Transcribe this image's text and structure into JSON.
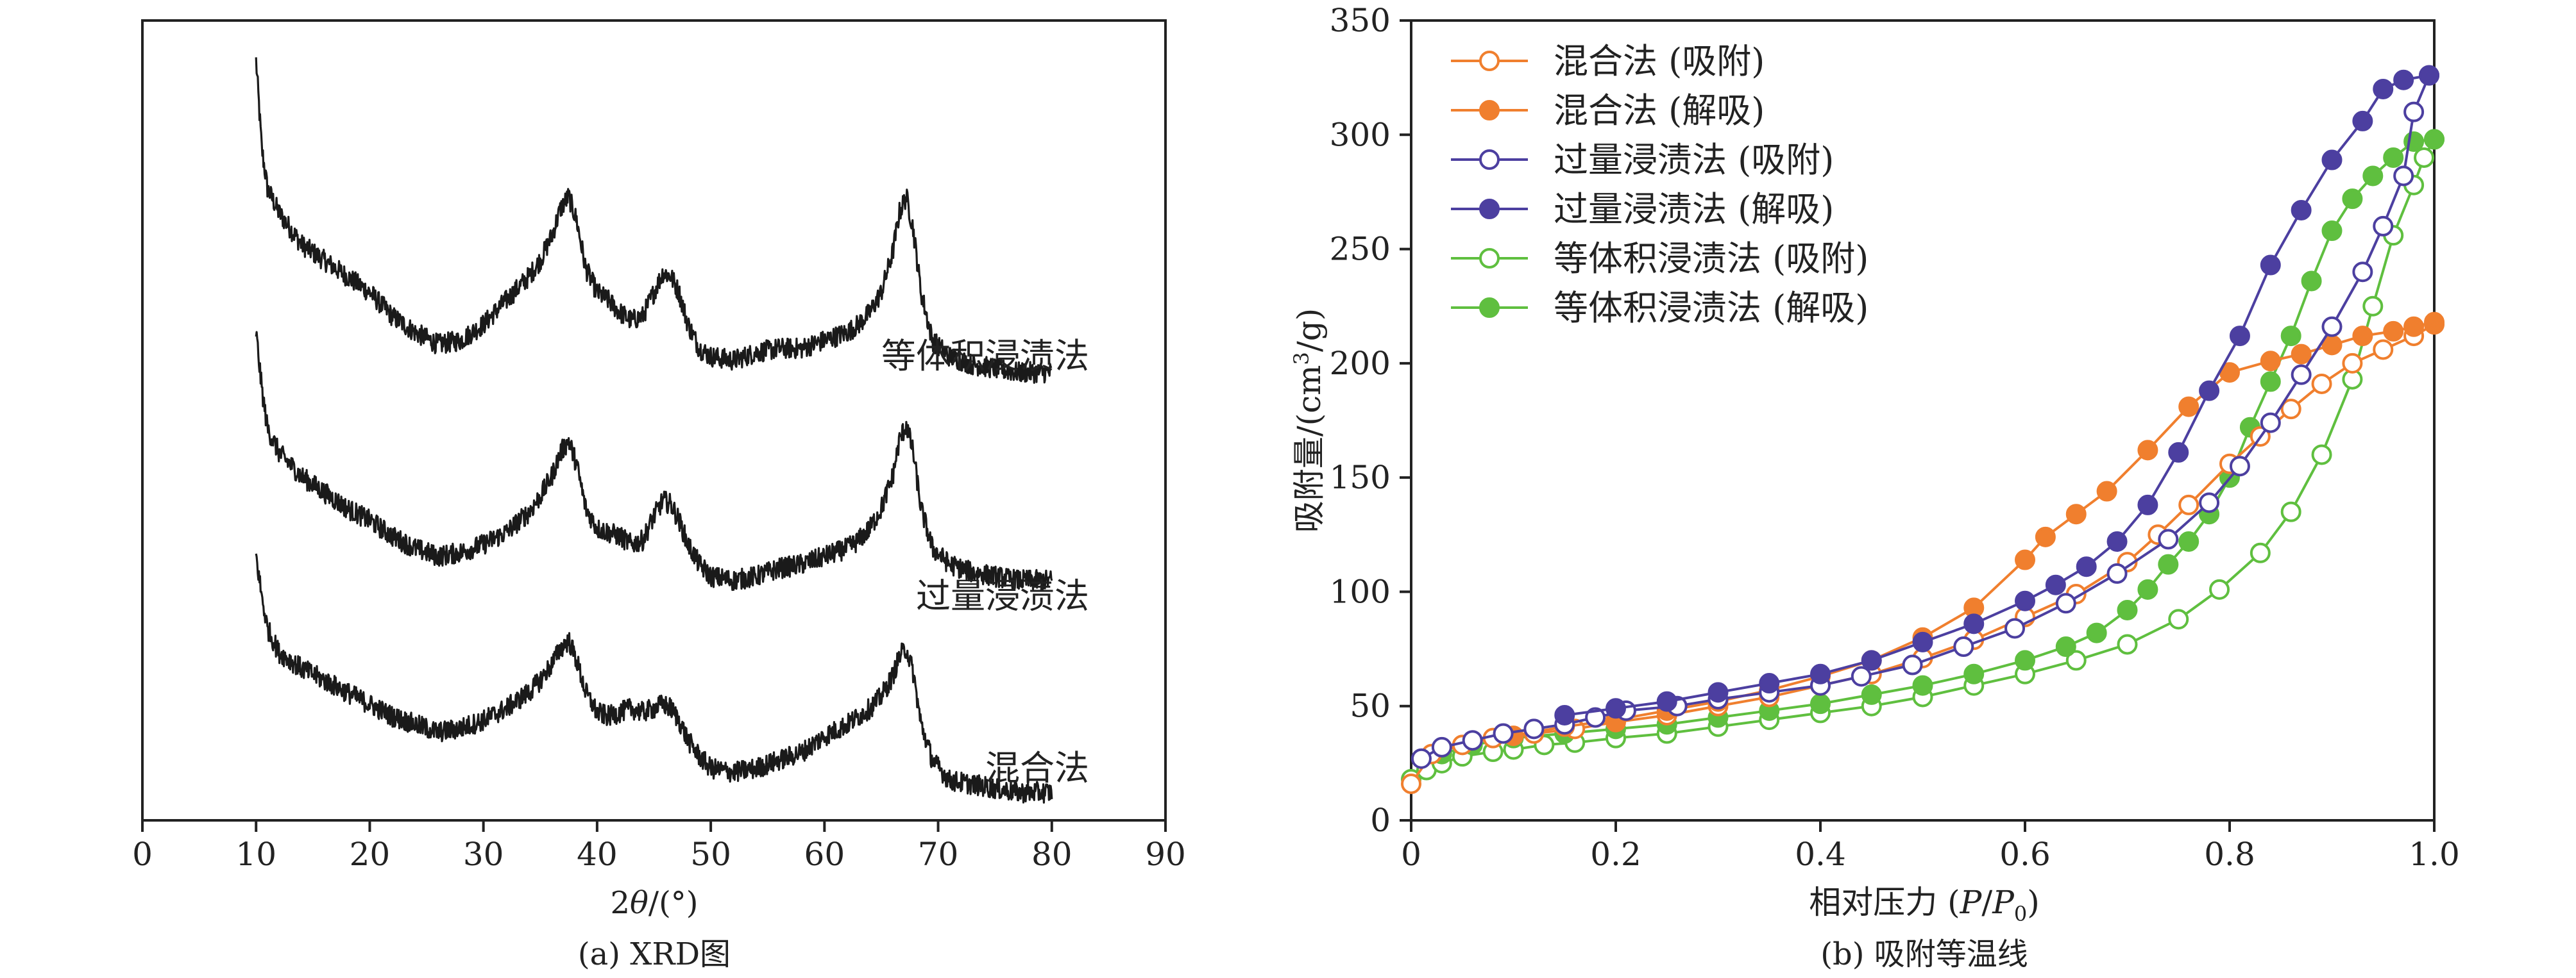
{
  "colors": {
    "xrd_line": "#1a1a1a",
    "mix": "#f07f2e",
    "excess": "#4c3fa0",
    "equal": "#5fbf3f",
    "axis": "#222222"
  },
  "chart_data": [
    {
      "type": "line",
      "title": "",
      "caption": "(a) XRD图",
      "xlabel_prefix": "2",
      "xlabel_theta": "θ",
      "xlabel_suffix": "/(°)",
      "ylabel": "",
      "xlim": [
        0,
        90
      ],
      "xticks": [
        0,
        10,
        20,
        30,
        40,
        50,
        60,
        70,
        80,
        90
      ],
      "y_ticks_shown": false,
      "series": [
        {
          "name": "等体积浸渍法",
          "label_position": "right",
          "x": [
            10,
            10.5,
            11,
            12,
            13,
            14,
            16,
            18,
            20,
            22,
            24,
            26,
            28,
            30,
            32,
            34,
            35,
            36,
            36.8,
            37.5,
            38.2,
            39,
            40,
            41,
            42,
            43,
            44,
            45,
            45.8,
            46.5,
            47.2,
            48,
            49,
            50,
            52,
            54,
            56,
            58,
            60,
            62,
            63,
            64,
            65,
            66,
            66.6,
            67.2,
            67.8,
            68.5,
            69.5,
            71,
            73,
            75,
            77,
            80
          ],
          "y": [
            95,
            84,
            79,
            76,
            74,
            72,
            70,
            68,
            66,
            63,
            61,
            59.5,
            60,
            62,
            65,
            68,
            70,
            73,
            76.5,
            78,
            75,
            69,
            66,
            65,
            63.5,
            62.5,
            63,
            66,
            68.5,
            68,
            66,
            62,
            59,
            58,
            57.5,
            58.5,
            59,
            59,
            60,
            61,
            62,
            63.5,
            66,
            71,
            76,
            78,
            74,
            66,
            60,
            58,
            57,
            56.5,
            56,
            56
          ]
        },
        {
          "name": "过量浸渍法",
          "label_position": "right",
          "x": [
            10,
            10.5,
            11,
            12,
            13,
            14,
            16,
            18,
            20,
            22,
            24,
            26,
            28,
            30,
            32,
            34,
            35,
            36,
            36.8,
            37.5,
            38.2,
            39,
            40,
            41,
            42,
            43,
            44,
            45,
            45.8,
            46.5,
            47.2,
            48,
            49,
            50,
            52,
            54,
            56,
            58,
            60,
            62,
            63,
            64,
            65,
            66,
            66.6,
            67.2,
            67.8,
            68.5,
            69.5,
            71,
            73,
            75,
            77,
            80
          ],
          "y": [
            61,
            54,
            49,
            46,
            44.5,
            43,
            41,
            39,
            37.5,
            35.5,
            34,
            33,
            33.5,
            34.5,
            36,
            38.5,
            40.5,
            43,
            46,
            47.5,
            44.5,
            39,
            36.5,
            36,
            35.5,
            34.5,
            35,
            38,
            40,
            39.5,
            37.5,
            34.5,
            32,
            30.5,
            30,
            30.5,
            31.5,
            32,
            33,
            34,
            35,
            36.5,
            39,
            43,
            47.5,
            49.5,
            46,
            39,
            34,
            32,
            31,
            30.5,
            30,
            30
          ]
        },
        {
          "name": "混合法",
          "label_position": "right",
          "x": [
            10,
            10.5,
            11,
            12,
            13,
            14,
            16,
            18,
            20,
            22,
            24,
            26,
            28,
            30,
            32,
            34,
            35,
            36,
            36.8,
            37.5,
            38.2,
            39,
            40,
            41,
            42,
            43,
            44,
            45,
            45.8,
            46.5,
            47.2,
            48,
            49,
            50,
            52,
            54,
            56,
            58,
            60,
            62,
            63,
            64,
            65,
            66,
            66.6,
            67.2,
            67.8,
            68.5,
            69.5,
            71,
            73,
            75,
            77,
            80
          ],
          "y": [
            33,
            28,
            24,
            21,
            20,
            19,
            17.5,
            16,
            14.5,
            13,
            12,
            11,
            11.5,
            12.5,
            14,
            16,
            17.5,
            19.5,
            21.5,
            22.5,
            20,
            16,
            13.5,
            13,
            13.5,
            14,
            13.5,
            14,
            14.5,
            14,
            12.5,
            10,
            8,
            6.5,
            6,
            6.5,
            7.5,
            8.5,
            10.5,
            12,
            13,
            14,
            15.5,
            18,
            20.5,
            21.5,
            18.5,
            12,
            7.5,
            5,
            4.5,
            4,
            3.5,
            3.5
          ]
        }
      ]
    },
    {
      "type": "line",
      "title": "",
      "caption": "(b) 吸附等温线",
      "xlabel_prefix": "相对压力 (",
      "xlabel_p": "P",
      "xlabel_slash": "/",
      "xlabel_p0": "P",
      "xlabel_sub": "0",
      "xlabel_close": ")",
      "ylabel_prefix": "吸附量/(cm",
      "ylabel_sup": "3",
      "ylabel_suffix": "/g)",
      "xlim": [
        0,
        1.0
      ],
      "ylim": [
        0,
        350
      ],
      "xticks": [
        0,
        0.2,
        0.4,
        0.6,
        0.8,
        1.0
      ],
      "xtick_labels": [
        "0",
        "0.2",
        "0.4",
        "0.6",
        "0.8",
        "1.0"
      ],
      "yticks": [
        0,
        50,
        100,
        150,
        200,
        250,
        300,
        350
      ],
      "legend_position": "top-left",
      "series": [
        {
          "name": "混合法 (吸附)",
          "color_key": "mix",
          "marker": "open",
          "x": [
            0.0,
            0.02,
            0.05,
            0.08,
            0.12,
            0.16,
            0.2,
            0.25,
            0.3,
            0.35,
            0.4,
            0.45,
            0.5,
            0.55,
            0.6,
            0.65,
            0.7,
            0.73,
            0.76,
            0.8,
            0.83,
            0.86,
            0.89,
            0.92,
            0.95,
            0.98,
            1.0
          ],
          "y": [
            16,
            29,
            33,
            36,
            38,
            40,
            43,
            46,
            50,
            54,
            59,
            64,
            71,
            79,
            89,
            99,
            113,
            125,
            138,
            156,
            168,
            180,
            191,
            200,
            206,
            212,
            217
          ]
        },
        {
          "name": "混合法 (解吸)",
          "color_key": "mix",
          "marker": "filled",
          "x": [
            1.0,
            0.98,
            0.96,
            0.93,
            0.9,
            0.87,
            0.84,
            0.8,
            0.76,
            0.72,
            0.68,
            0.65,
            0.62,
            0.6,
            0.55,
            0.5,
            0.45,
            0.4,
            0.35,
            0.3,
            0.25,
            0.2,
            0.15,
            0.1
          ],
          "y": [
            218,
            216,
            214,
            212,
            208,
            204,
            201,
            196,
            181,
            162,
            144,
            134,
            124,
            114,
            93,
            80,
            70,
            63,
            57,
            52,
            48,
            44,
            41,
            37
          ]
        },
        {
          "name": "过量浸渍法 (吸附)",
          "color_key": "excess",
          "marker": "open",
          "x": [
            0.01,
            0.03,
            0.06,
            0.09,
            0.12,
            0.15,
            0.18,
            0.21,
            0.26,
            0.3,
            0.35,
            0.4,
            0.44,
            0.49,
            0.54,
            0.59,
            0.64,
            0.69,
            0.74,
            0.78,
            0.81,
            0.84,
            0.87,
            0.9,
            0.93,
            0.95,
            0.97,
            0.98,
            0.995
          ],
          "y": [
            27,
            32,
            35,
            38,
            40,
            42,
            45,
            48,
            50,
            53,
            56,
            59,
            63,
            68,
            76,
            84,
            95,
            108,
            123,
            139,
            155,
            174,
            195,
            216,
            240,
            260,
            282,
            310,
            326
          ]
        },
        {
          "name": "过量浸渍法 (解吸)",
          "color_key": "excess",
          "marker": "filled",
          "x": [
            0.995,
            0.97,
            0.95,
            0.93,
            0.9,
            0.87,
            0.84,
            0.81,
            0.78,
            0.75,
            0.72,
            0.69,
            0.66,
            0.63,
            0.6,
            0.55,
            0.5,
            0.45,
            0.4,
            0.35,
            0.3,
            0.25,
            0.2,
            0.15
          ],
          "y": [
            326,
            324,
            320,
            306,
            289,
            267,
            243,
            212,
            188,
            161,
            138,
            122,
            111,
            103,
            96,
            86,
            78,
            70,
            64,
            60,
            56,
            52,
            49,
            46
          ]
        },
        {
          "name": "等体积浸渍法 (吸附)",
          "color_key": "equal",
          "marker": "open",
          "x": [
            0.0,
            0.015,
            0.03,
            0.05,
            0.08,
            0.1,
            0.13,
            0.16,
            0.2,
            0.25,
            0.3,
            0.35,
            0.4,
            0.45,
            0.5,
            0.55,
            0.6,
            0.65,
            0.7,
            0.75,
            0.79,
            0.83,
            0.86,
            0.89,
            0.92,
            0.94,
            0.96,
            0.98,
            0.99,
            1.0
          ],
          "y": [
            18,
            22,
            25,
            28,
            30,
            31,
            33,
            34,
            36,
            38,
            41,
            44,
            47,
            50,
            54,
            59,
            64,
            70,
            77,
            88,
            101,
            117,
            135,
            160,
            193,
            225,
            256,
            278,
            290,
            298
          ]
        },
        {
          "name": "等体积浸渍法 (解吸)",
          "color_key": "equal",
          "marker": "filled",
          "x": [
            1.0,
            0.98,
            0.96,
            0.94,
            0.92,
            0.9,
            0.88,
            0.86,
            0.84,
            0.82,
            0.8,
            0.78,
            0.76,
            0.74,
            0.72,
            0.7,
            0.67,
            0.64,
            0.6,
            0.55,
            0.5,
            0.45,
            0.4,
            0.35,
            0.3,
            0.25,
            0.2,
            0.15,
            0.1,
            0.06,
            0.03
          ],
          "y": [
            298,
            297,
            290,
            282,
            272,
            258,
            236,
            212,
            192,
            172,
            150,
            134,
            122,
            112,
            101,
            92,
            82,
            76,
            70,
            64,
            59,
            55,
            51,
            48,
            45,
            42,
            40,
            38,
            36,
            33,
            29
          ]
        }
      ]
    }
  ]
}
